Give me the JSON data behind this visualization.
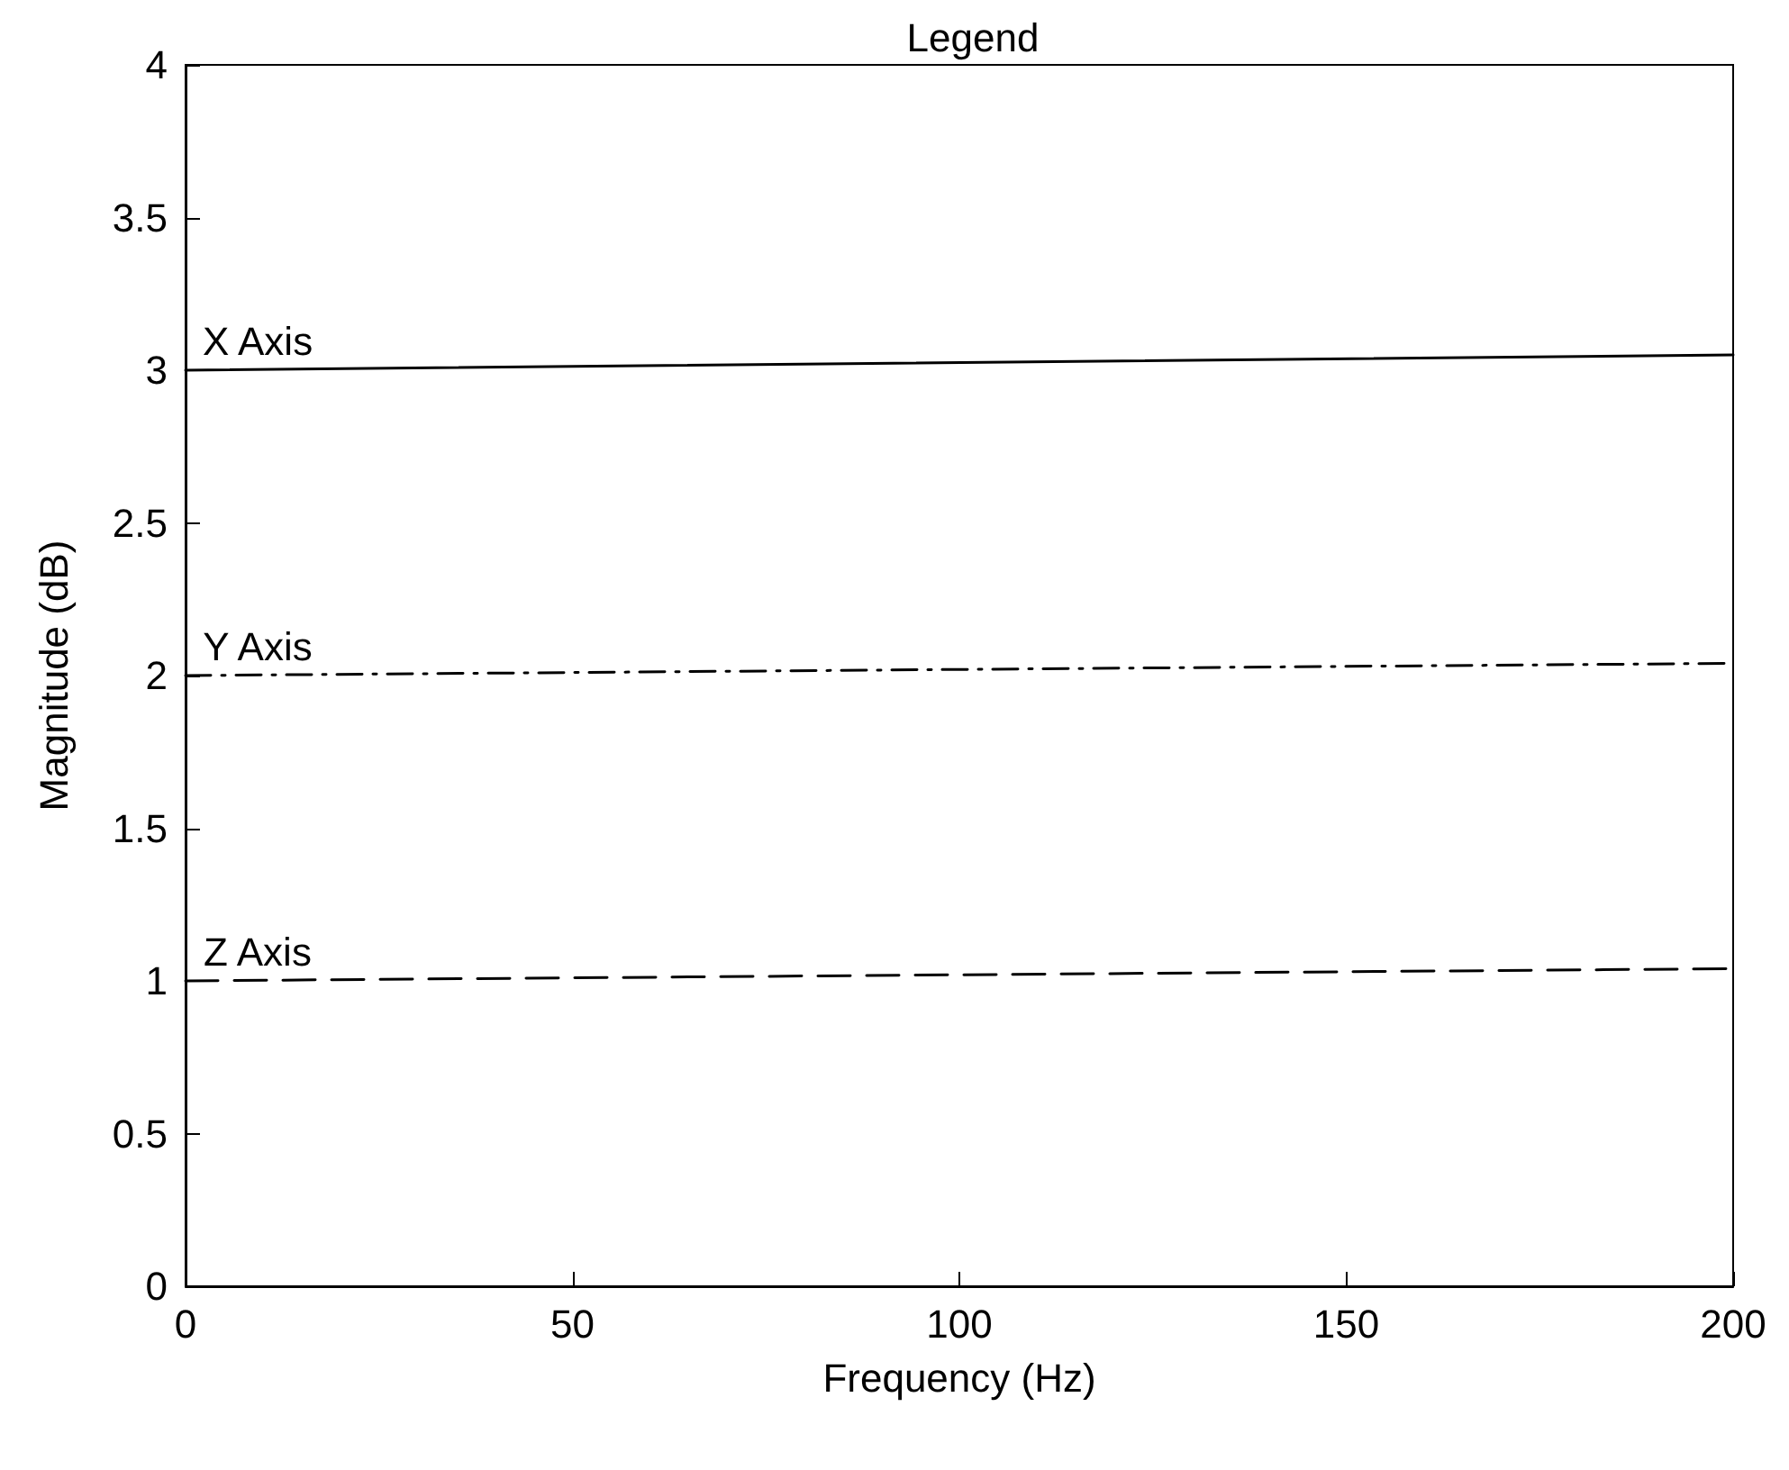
{
  "chart_data": {
    "type": "line",
    "title": "Legend",
    "xlabel": "Frequency (Hz)",
    "ylabel": "Magnitude (dB)",
    "x": [
      0,
      200
    ],
    "series": [
      {
        "name": "X Axis",
        "color": "#000000",
        "values": [
          3.0,
          3.05
        ],
        "line_style": "solid"
      },
      {
        "name": "Y Axis",
        "color": "#000000",
        "values": [
          2.0,
          2.04
        ],
        "line_style": "dashdot"
      },
      {
        "name": "Z Axis",
        "color": "#000000",
        "values": [
          1.0,
          1.04
        ],
        "line_style": "dashed"
      }
    ],
    "xlim": [
      0,
      200
    ],
    "xticks": [
      0,
      50,
      100,
      150,
      200
    ],
    "ylim": [
      0,
      4
    ],
    "yticks": [
      0,
      0.5,
      1,
      1.5,
      2,
      2.5,
      3,
      3.5,
      4
    ],
    "grid": false,
    "legend": false,
    "marker": "none"
  }
}
